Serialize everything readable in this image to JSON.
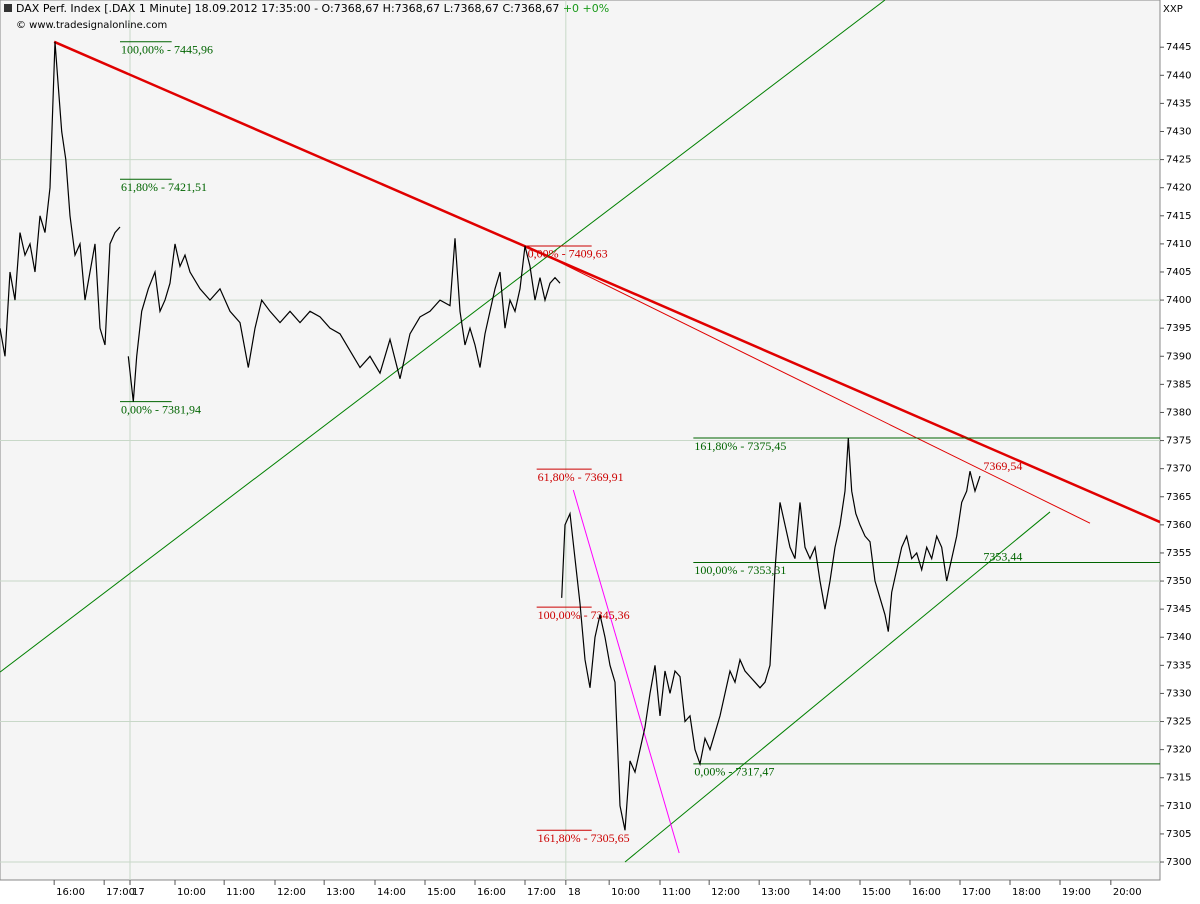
{
  "chart_data": {
    "type": "line",
    "header": "DAX Perf. Index [.DAX  1 Minute] 18.09.2012 17:35:00 - O:7368,67 H:7368,67 L:7368,67 C:7368,67",
    "change": "+0 +0%",
    "source": "© www.tradesignalonline.com",
    "symbol": "XXP",
    "color": "#000000",
    "x": [
      0,
      6,
      12,
      18,
      24,
      30,
      36,
      42,
      48,
      54,
      60,
      66,
      70,
      74,
      79,
      84,
      90,
      96,
      102,
      108,
      114,
      120,
      126,
      132,
      138,
      144,
      150,
      154,
      160,
      164,
      170,
      178,
      186,
      192,
      198,
      204,
      210,
      216,
      222,
      228,
      240,
      252,
      264,
      276,
      288,
      298,
      306,
      314,
      324,
      336,
      348,
      360,
      372,
      384,
      396,
      408,
      420,
      432,
      444,
      456,
      468,
      480,
      492,
      504,
      516,
      528,
      540,
      546,
      552,
      558,
      564,
      570,
      576,
      582,
      588,
      594,
      600,
      606,
      612,
      618,
      624,
      630,
      636,
      642,
      648,
      654,
      660,
      666,
      672,
      673,
      674,
      678,
      684,
      690,
      696,
      702,
      708,
      714,
      720,
      726,
      732,
      738,
      744,
      750,
      756,
      762,
      768,
      774,
      780,
      786,
      792,
      798,
      804,
      810,
      816,
      822,
      828,
      834,
      840,
      846,
      852,
      858,
      864,
      870,
      876,
      882,
      888,
      894,
      900,
      906,
      912,
      918,
      924,
      930,
      936,
      942,
      948,
      954,
      960,
      966,
      972,
      978,
      984,
      990,
      996,
      1002,
      1008,
      1014,
      1018,
      1022,
      1027,
      1032,
      1038,
      1044,
      1050,
      1056,
      1062,
      1066,
      1070,
      1076,
      1082,
      1088,
      1094,
      1100,
      1106,
      1112,
      1118,
      1124,
      1130,
      1136,
      1142,
      1148,
      1154,
      1160,
      1164,
      1170,
      1176
    ],
    "values": [
      7395,
      7390,
      7405,
      7400,
      7412,
      7408,
      7410,
      7405,
      7415,
      7412,
      7420,
      7445.96,
      7438,
      7430,
      7425,
      7415,
      7408,
      7410,
      7400,
      7405,
      7410,
      7395,
      7392,
      7410,
      7412,
      7413,
      null,
      7390,
      7381.94,
      7390,
      7398,
      7402,
      7405,
      7398,
      7400,
      7403,
      7410,
      7406,
      7408,
      7405,
      7402,
      7400,
      7402,
      7398,
      7396,
      7388,
      7395,
      7400,
      7398,
      7396,
      7398,
      7396,
      7398,
      7397,
      7395,
      7394,
      7391,
      7388,
      7390,
      7387,
      7393,
      7386,
      7394,
      7397,
      7398,
      7400,
      7399,
      7411,
      7398,
      7392,
      7395,
      7392,
      7388,
      7394,
      7398,
      7402,
      7405,
      7395,
      7400,
      7398,
      7402,
      7409.63,
      7406,
      7400,
      7404,
      7400,
      7403,
      7404,
      7403,
      null,
      7347,
      7360,
      7362,
      7354,
      7346,
      7336,
      7331,
      7340,
      7344,
      7340,
      7335,
      7332,
      7310,
      7305.65,
      7318,
      7316,
      7320,
      7324,
      7330,
      7335,
      7326,
      7334,
      7330,
      7334,
      7333,
      7325,
      7326,
      7320,
      7317.47,
      7322,
      7320,
      7323,
      7326,
      7330,
      7334,
      7332,
      7336,
      7334,
      7333,
      7332,
      7331,
      7332,
      7335,
      7352,
      7364,
      7360,
      7356,
      7354,
      7364,
      7356,
      7354,
      7356,
      7350,
      7345,
      7350,
      7356,
      7360,
      7366,
      7375.45,
      7366,
      7362,
      7360,
      7358,
      7357,
      7350,
      7347,
      7344,
      7341,
      7348,
      7352,
      7356,
      7358,
      7354,
      7355,
      7352,
      7356,
      7354,
      7358,
      7356,
      7350,
      7354,
      7358,
      7364,
      7366,
      7369.54,
      7366,
      7368.67
    ],
    "xlim": [
      0,
      1392
    ],
    "ylim": [
      7296.8,
      7453.4
    ],
    "yticks": [
      7300,
      7305,
      7310,
      7315,
      7320,
      7325,
      7330,
      7335,
      7340,
      7345,
      7350,
      7355,
      7360,
      7365,
      7370,
      7375,
      7380,
      7385,
      7390,
      7395,
      7400,
      7405,
      7410,
      7415,
      7420,
      7425,
      7430,
      7435,
      7440,
      7445
    ],
    "xticks": [
      {
        "value": 65,
        "label": "16:00"
      },
      {
        "value": 125,
        "label": "17:00"
      },
      {
        "value": 156,
        "label": "17"
      },
      {
        "value": 210,
        "label": "10:00"
      },
      {
        "value": 269,
        "label": "11:00"
      },
      {
        "value": 330,
        "label": "12:00"
      },
      {
        "value": 389,
        "label": "13:00"
      },
      {
        "value": 450,
        "label": "14:00"
      },
      {
        "value": 510,
        "label": "15:00"
      },
      {
        "value": 570,
        "label": "16:00"
      },
      {
        "value": 630,
        "label": "17:00"
      },
      {
        "value": 679,
        "label": "18"
      },
      {
        "value": 731,
        "label": "10:00"
      },
      {
        "value": 792,
        "label": "11:00"
      },
      {
        "value": 851,
        "label": "12:00"
      },
      {
        "value": 911,
        "label": "13:00"
      },
      {
        "value": 972,
        "label": "14:00"
      },
      {
        "value": 1032,
        "label": "15:00"
      },
      {
        "value": 1092,
        "label": "16:00"
      },
      {
        "value": 1152,
        "label": "17:00"
      },
      {
        "value": 1212,
        "label": "18:00"
      },
      {
        "value": 1272,
        "label": "19:00"
      },
      {
        "value": 1333,
        "label": "20:00"
      }
    ],
    "ygrid": [
      7300,
      7325,
      7350,
      7375,
      7400,
      7425
    ],
    "xgrid": [
      156,
      679
    ],
    "annotations": [
      {
        "label": "100,00% - 7445,96",
        "value": 7445.96,
        "x": [
          144,
          206
        ],
        "color": "#006400"
      },
      {
        "label": "61,80% - 7421,51",
        "value": 7421.51,
        "x": [
          144,
          206
        ],
        "color": "#006400"
      },
      {
        "label": "0,00% - 7381,94",
        "value": 7381.94,
        "x": [
          144,
          206
        ],
        "color": "#006400"
      },
      {
        "label": "0,00% - 7409,63",
        "value": 7409.63,
        "x": [
          632,
          710
        ],
        "color": "#cc0000"
      },
      {
        "label": "61,80% - 7369,91",
        "value": 7369.91,
        "x": [
          644,
          710
        ],
        "color": "#cc0000"
      },
      {
        "label": "100,00% - 7345,36",
        "value": 7345.36,
        "x": [
          644,
          710
        ],
        "color": "#cc0000"
      },
      {
        "label": "161,80% - 7305,65",
        "value": 7305.65,
        "x": [
          644,
          710
        ],
        "color": "#cc0000"
      },
      {
        "label": "161,80% - 7375,45",
        "value": 7375.45,
        "x": [
          832,
          1392
        ],
        "color": "#006400"
      },
      {
        "label": "100,00% - 7353,31",
        "value": 7353.31,
        "x": [
          832,
          1392
        ],
        "color": "#006400"
      },
      {
        "label": "0,00% - 7317,47",
        "value": 7317.47,
        "x": [
          832,
          1392
        ],
        "color": "#006400"
      }
    ],
    "point_labels": [
      {
        "label": "7369,54",
        "value": 7369.54,
        "x": 1180,
        "color": "#cc0000"
      },
      {
        "label": "7353,44",
        "value": 7353.44,
        "x": 1180,
        "color": "#006400"
      }
    ],
    "lines": [
      {
        "x": [
          65,
          1392
        ],
        "y": [
          7445.96,
          7360.5
        ],
        "color": "#e00000",
        "width": 2.5
      },
      {
        "x": [
          632,
          1308
        ],
        "y": [
          7409.63,
          7360.3
        ],
        "color": "#e00000",
        "width": 1
      },
      {
        "x": [
          0,
          1062
        ],
        "y": [
          7333.8,
          7453.4
        ],
        "color": "#008000",
        "width": 1
      },
      {
        "x": [
          750,
          1260
        ],
        "y": [
          7300,
          7362.3
        ],
        "color": "#008000",
        "width": 1
      },
      {
        "x": [
          688,
          815
        ],
        "y": [
          7366.2,
          7301.6
        ],
        "color": "#ff00ff",
        "width": 1
      }
    ]
  }
}
